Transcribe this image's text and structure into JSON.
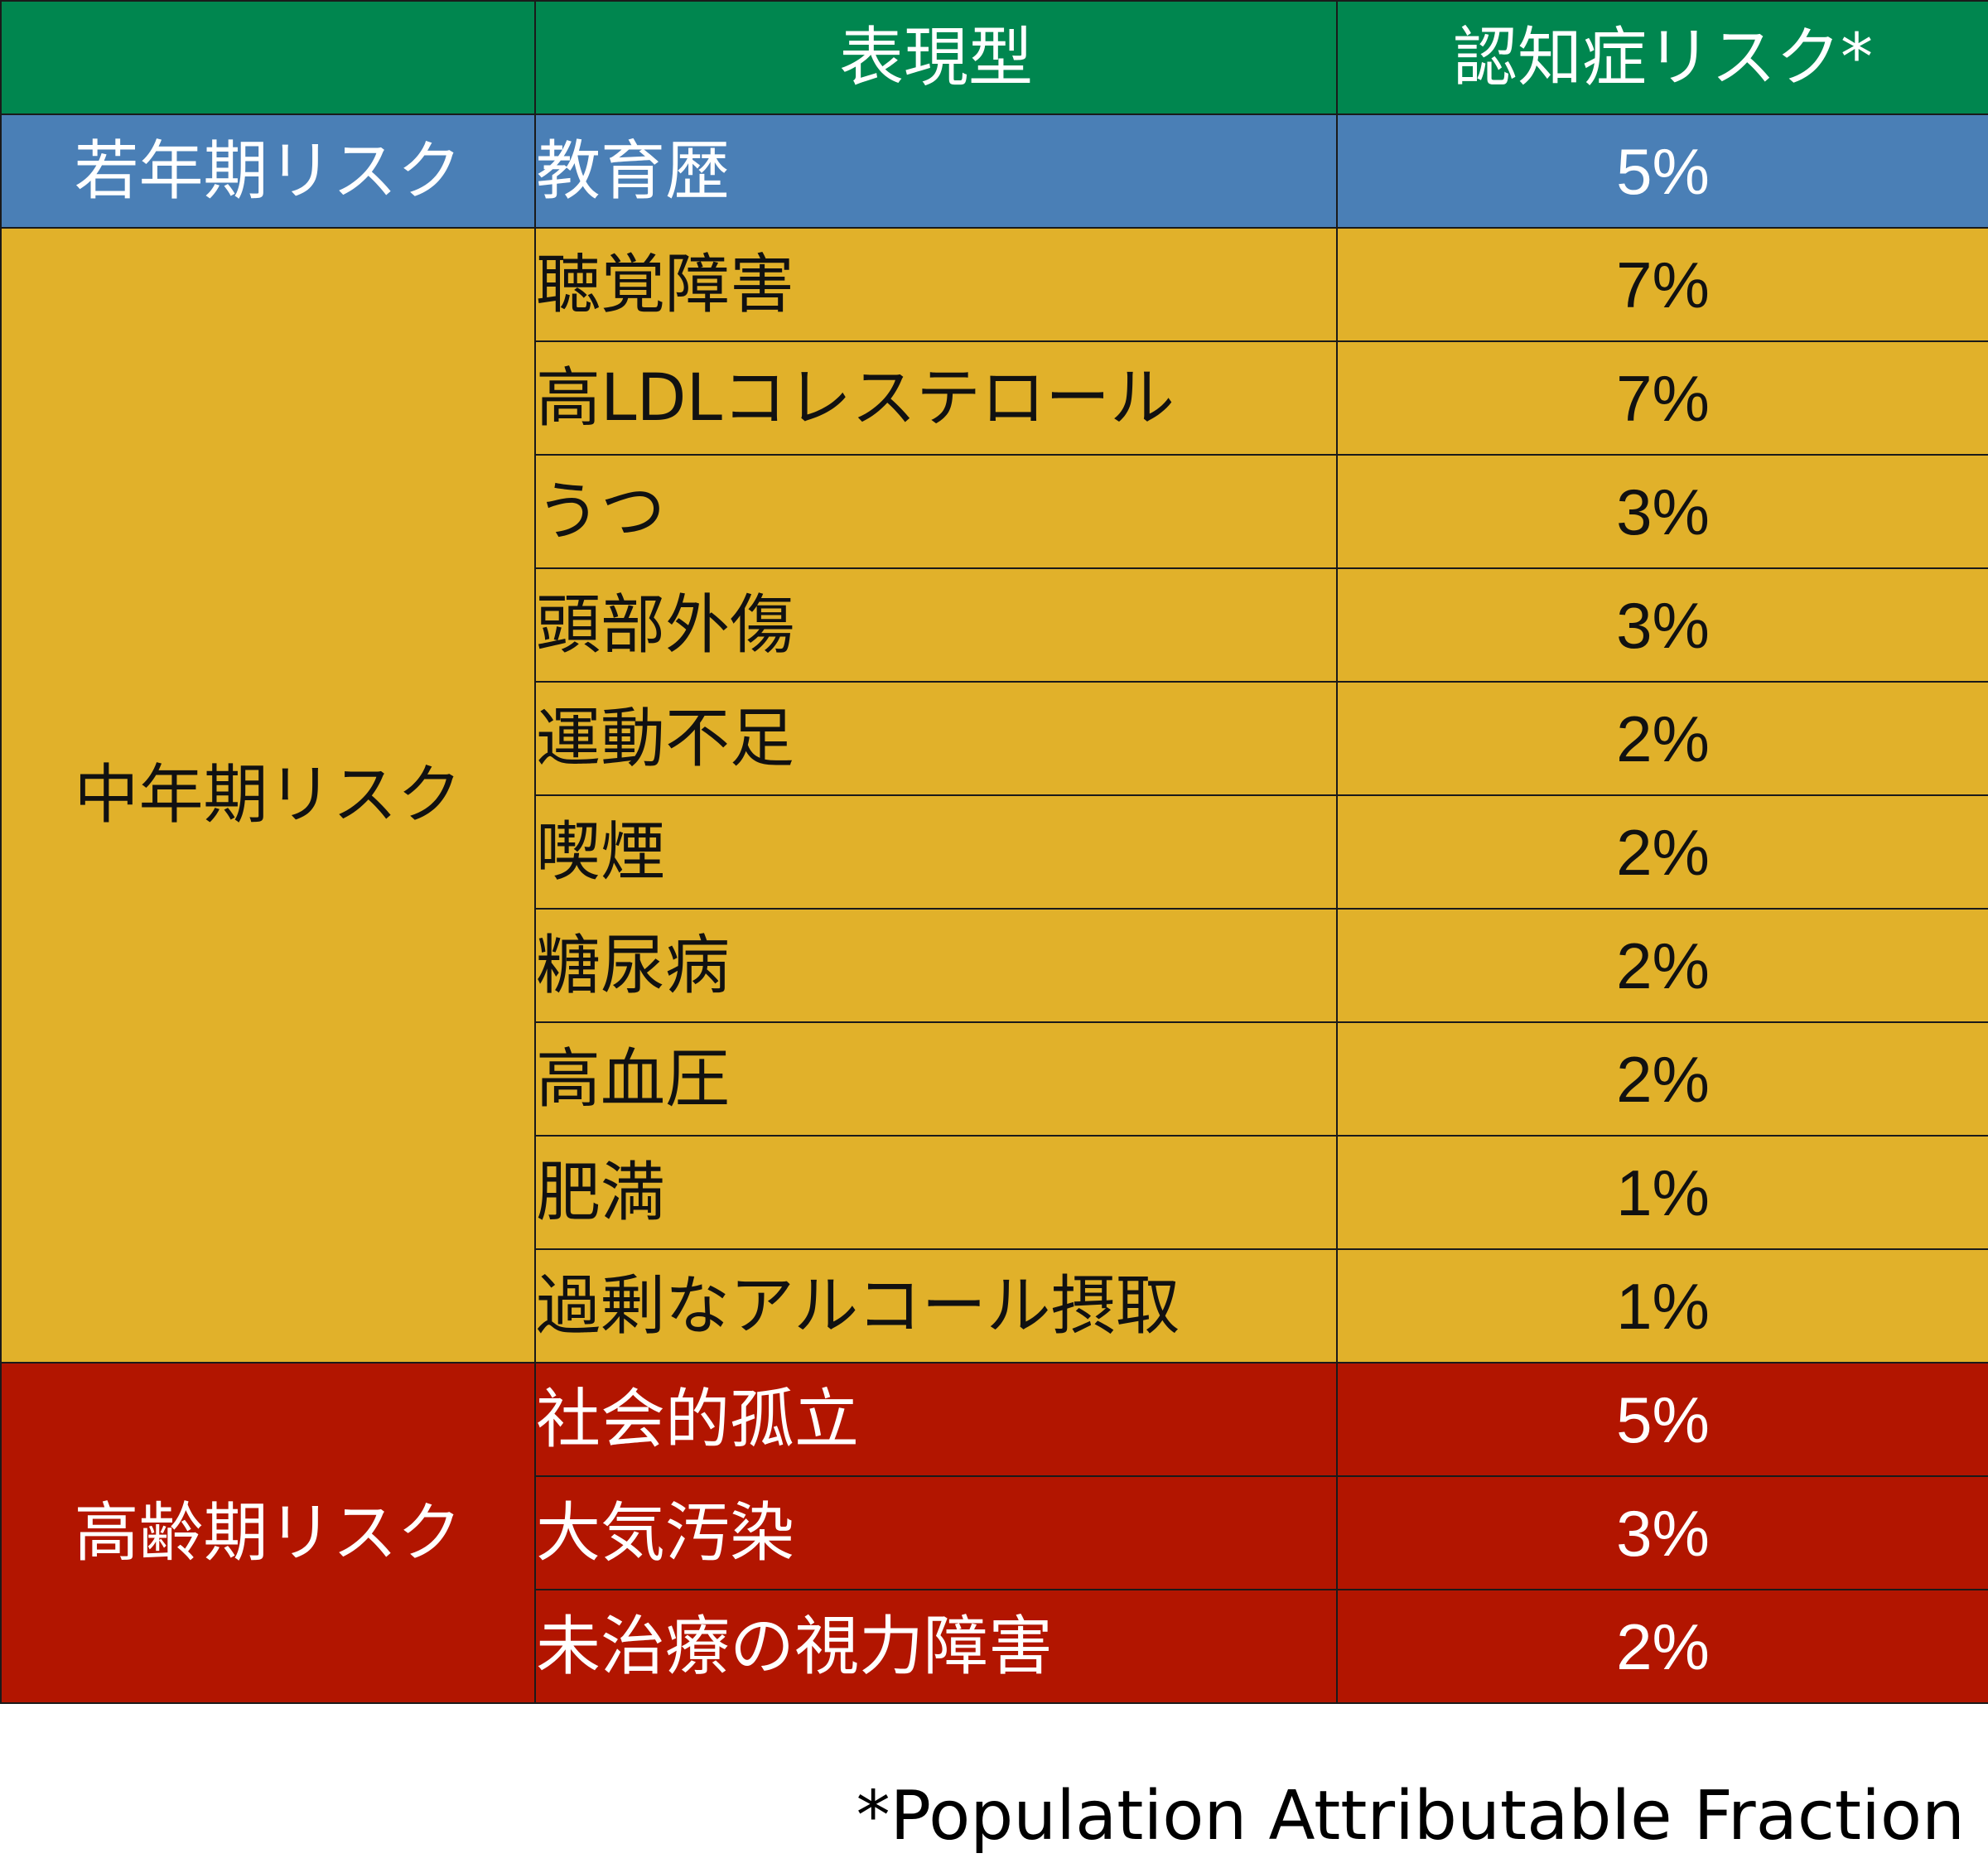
{
  "header": {
    "stage": "",
    "phenotype": "表現型",
    "risk": "認知症リスク*"
  },
  "groups": [
    {
      "stage": "若年期リスク",
      "color": "#4a7fb6",
      "rows": [
        {
          "phenotype": "教育歴",
          "risk": "5%"
        }
      ]
    },
    {
      "stage": "中年期リスク",
      "color": "#e1b12a",
      "rows": [
        {
          "phenotype": "聴覚障害",
          "risk": "7%"
        },
        {
          "phenotype": "高LDLコレステロール",
          "risk": "7%"
        },
        {
          "phenotype": "うつ",
          "risk": "3%"
        },
        {
          "phenotype": "頭部外傷",
          "risk": "3%"
        },
        {
          "phenotype": "運動不足",
          "risk": "2%"
        },
        {
          "phenotype": "喫煙",
          "risk": "2%"
        },
        {
          "phenotype": "糖尿病",
          "risk": "2%"
        },
        {
          "phenotype": "高血圧",
          "risk": "2%"
        },
        {
          "phenotype": "肥満",
          "risk": "1%"
        },
        {
          "phenotype": "過剰なアルコール摂取",
          "risk": "1%"
        }
      ]
    },
    {
      "stage": "高齢期リスク",
      "color": "#b21500",
      "rows": [
        {
          "phenotype": "社会的孤立",
          "risk": "5%"
        },
        {
          "phenotype": "大気汚染",
          "risk": "3%"
        },
        {
          "phenotype": "未治療の視力障害",
          "risk": "2%"
        }
      ]
    }
  ],
  "header_color": "#00864f",
  "footnote": "*Population Attributable Fraction"
}
